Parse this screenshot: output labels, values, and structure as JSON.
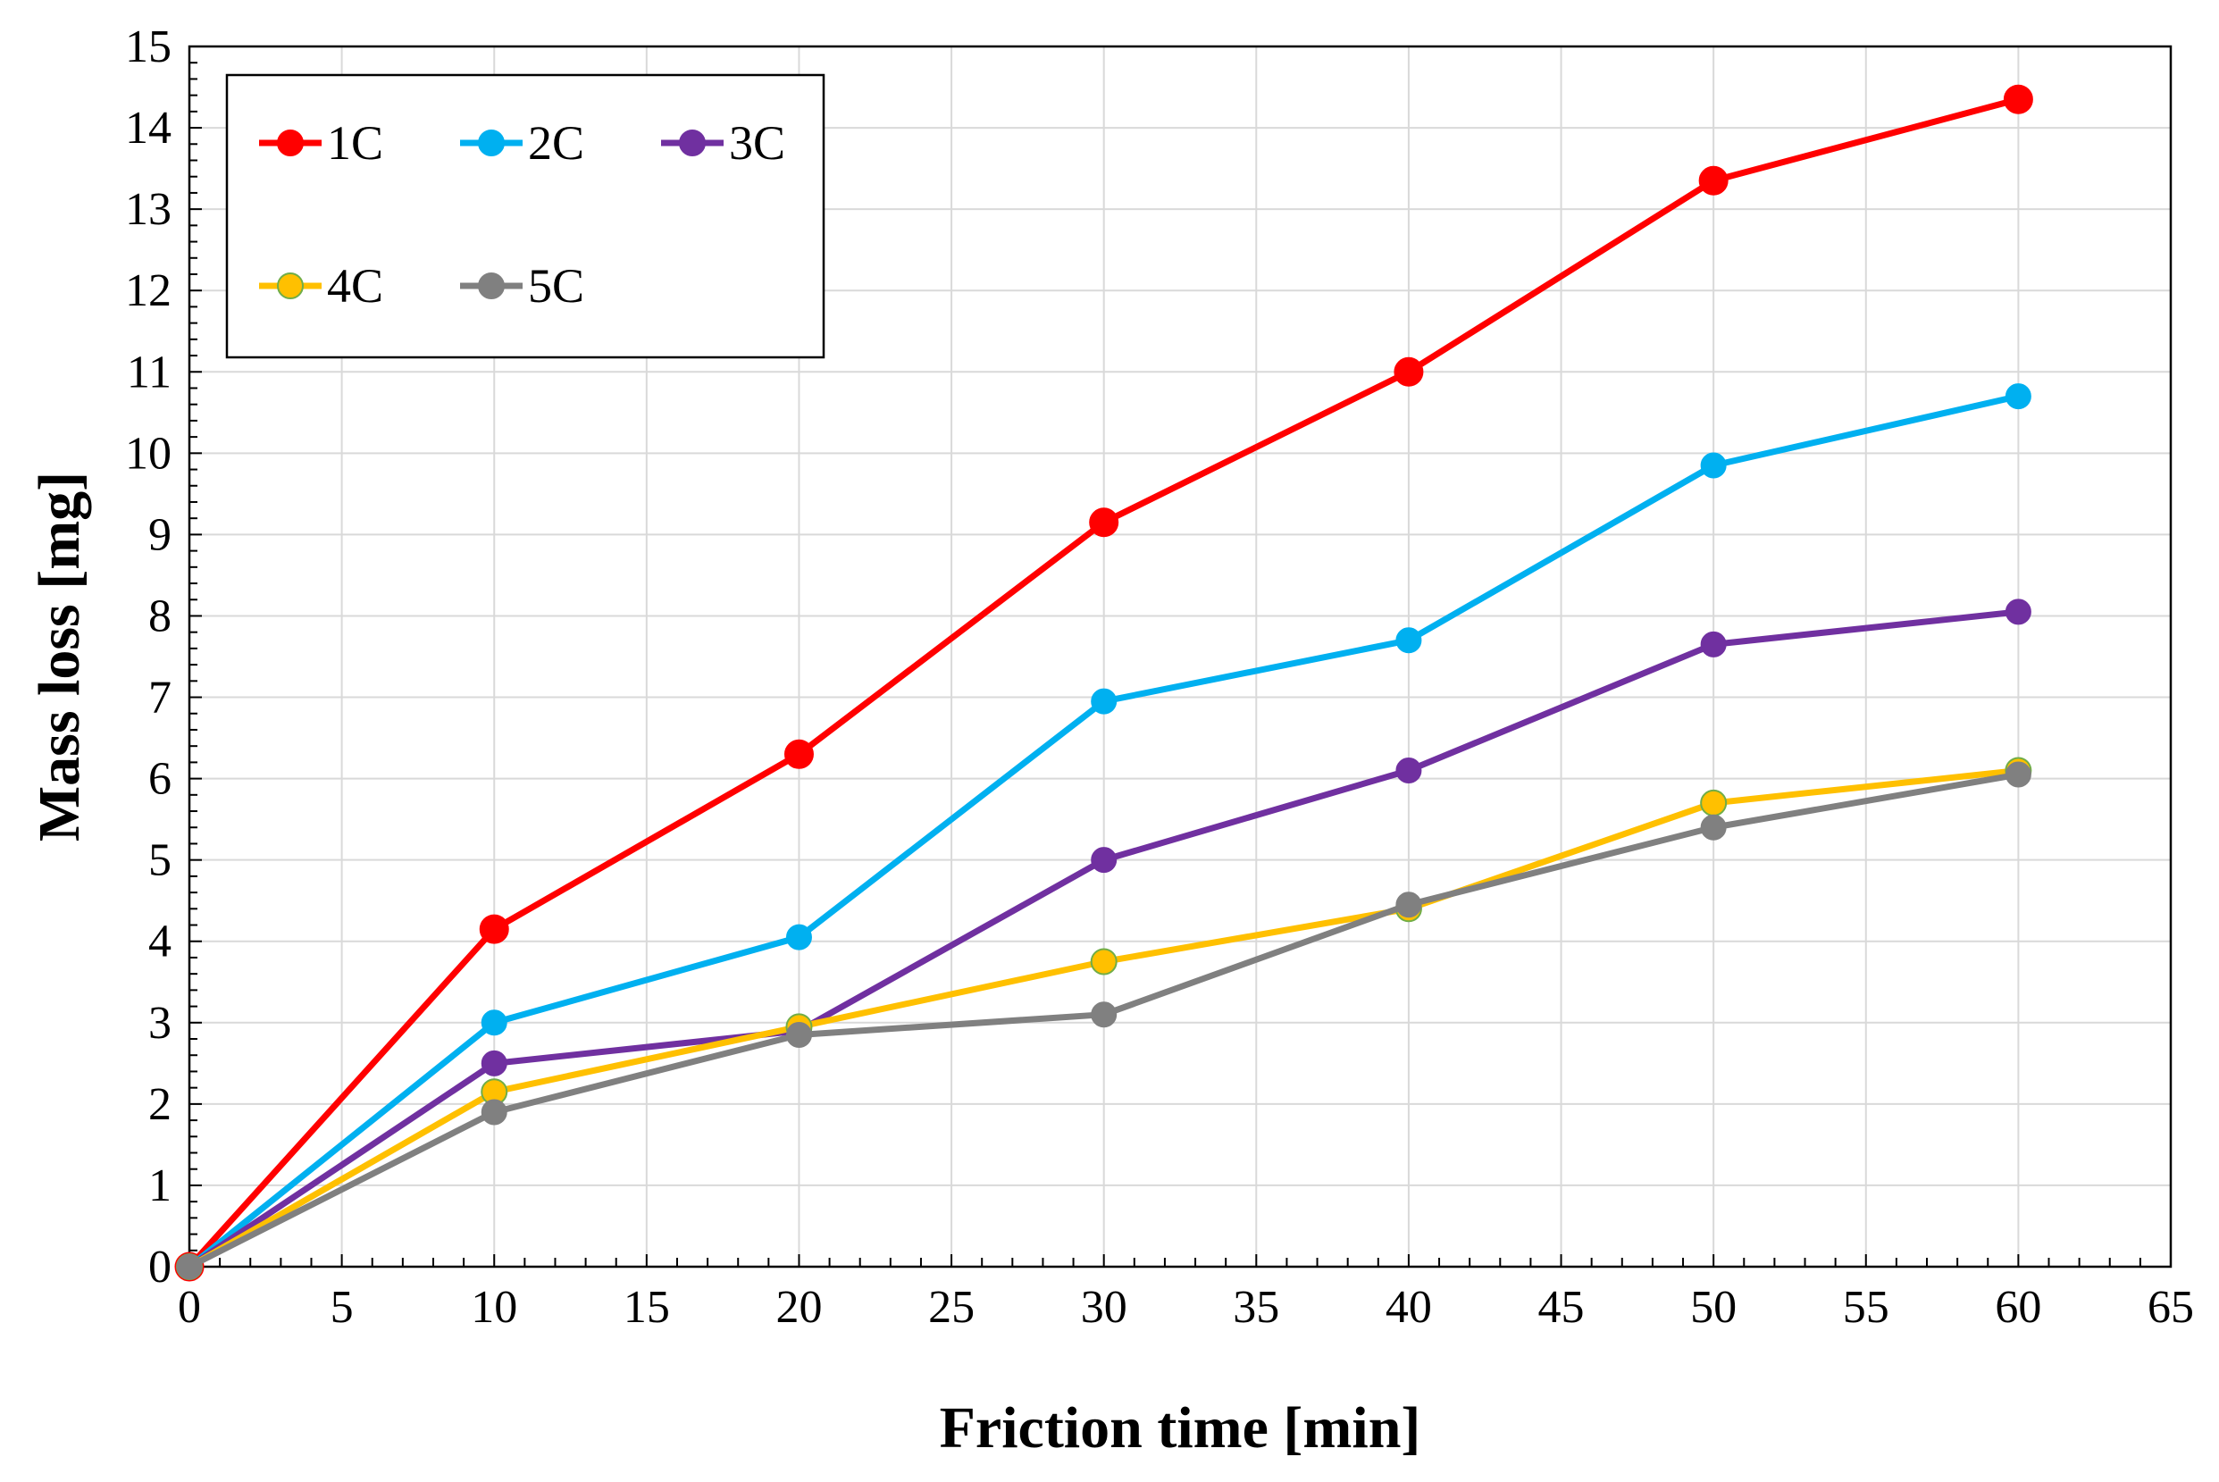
{
  "chart_data": {
    "type": "line",
    "title": "",
    "xlabel": "Friction time [min]",
    "ylabel": "Mass loss [mg]",
    "xlim": [
      0,
      65
    ],
    "ylim": [
      0,
      15
    ],
    "xticks": [
      0,
      5,
      10,
      15,
      20,
      25,
      30,
      35,
      40,
      45,
      50,
      55,
      60,
      65
    ],
    "yticks": [
      0,
      1,
      2,
      3,
      4,
      5,
      6,
      7,
      8,
      9,
      10,
      11,
      12,
      13,
      14,
      15
    ],
    "grid": true,
    "legend_position": "top-left",
    "x": [
      0,
      10,
      20,
      30,
      40,
      50,
      60
    ],
    "series": [
      {
        "name": "1C",
        "color": "#ff0000",
        "values": [
          0,
          4.15,
          6.3,
          9.15,
          11.0,
          13.35,
          14.35
        ]
      },
      {
        "name": "2C",
        "color": "#00b0f0",
        "values": [
          0,
          3.0,
          4.05,
          6.95,
          7.7,
          9.85,
          10.7
        ]
      },
      {
        "name": "3C",
        "color": "#7030a0",
        "values": [
          0,
          2.5,
          2.9,
          5.0,
          6.1,
          7.65,
          8.05
        ]
      },
      {
        "name": "4C",
        "color": "#ffc000",
        "values": [
          0,
          2.15,
          2.95,
          3.75,
          4.4,
          5.7,
          6.1
        ]
      },
      {
        "name": "5C",
        "color": "#808080",
        "values": [
          0,
          1.9,
          2.85,
          3.1,
          4.45,
          5.4,
          6.05
        ]
      }
    ]
  }
}
